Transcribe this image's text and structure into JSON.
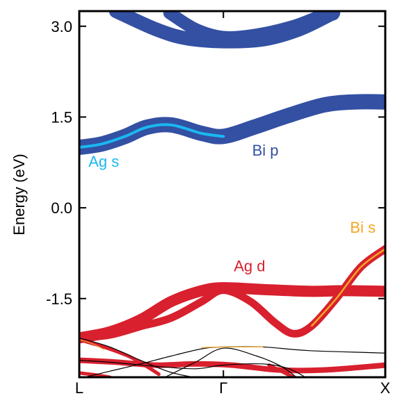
{
  "chart_data": {
    "type": "line",
    "title": "",
    "xlabel": "",
    "ylabel": "Energy (eV)",
    "ylim": [
      -2.8,
      3.25
    ],
    "xlim": [
      0,
      1
    ],
    "grid": false,
    "y_ticks": [
      {
        "value": 3.0,
        "label": "3.0"
      },
      {
        "value": 1.5,
        "label": "1.5"
      },
      {
        "value": 0.0,
        "label": "0.0"
      },
      {
        "value": -1.5,
        "label": "-1.5"
      }
    ],
    "x_ticks": [
      {
        "value": 0.0,
        "label": "L"
      },
      {
        "value": 0.471,
        "label": "Γ"
      },
      {
        "value": 1.0,
        "label": "X"
      }
    ],
    "colors": {
      "bi_p": "#3350a3",
      "ag_s": "#1ab8f0",
      "ag_d": "#d8202e",
      "bi_s": "#f5a623",
      "thin": "#000000"
    },
    "annotations": [
      {
        "text": "Ag s",
        "x": 0.03,
        "y": 0.68,
        "color": "#1ab8f0"
      },
      {
        "text": "Bi p",
        "x": 0.565,
        "y": 0.86,
        "color": "#3350a3"
      },
      {
        "text": "Bi s",
        "x": 0.885,
        "y": -0.41,
        "color": "#f5a623"
      },
      {
        "text": "Ag d",
        "x": 0.505,
        "y": -1.05,
        "color": "#d8202e"
      }
    ],
    "series": [
      {
        "character": "bi_p",
        "width": 20,
        "x": [
          0.12,
          0.25,
          0.35,
          0.471,
          0.6,
          0.72,
          0.83
        ],
        "y": [
          3.25,
          2.95,
          2.8,
          2.75,
          2.78,
          2.95,
          3.22
        ]
      },
      {
        "character": "bi_p",
        "width": 18,
        "x": [
          0.295,
          0.38,
          0.471,
          0.58,
          0.7,
          0.79,
          0.83
        ],
        "y": [
          3.22,
          2.95,
          2.82,
          2.86,
          3.0,
          3.17,
          3.2
        ]
      },
      {
        "character": "bi_p",
        "width": 22,
        "x": [
          0.0,
          0.07,
          0.15,
          0.22,
          0.3,
          0.4,
          0.471,
          0.57,
          0.68,
          0.8,
          0.9,
          1.0
        ],
        "y": [
          1.0,
          1.05,
          1.18,
          1.33,
          1.37,
          1.23,
          1.18,
          1.33,
          1.52,
          1.7,
          1.75,
          1.75
        ]
      },
      {
        "character": "ag_s",
        "width": 4,
        "x": [
          0.0,
          0.07,
          0.15,
          0.22,
          0.3,
          0.4,
          0.471
        ],
        "y": [
          1.0,
          1.05,
          1.18,
          1.33,
          1.37,
          1.23,
          1.18
        ]
      },
      {
        "character": "ag_d",
        "width": 16,
        "x": [
          0.0,
          0.1,
          0.2,
          0.3,
          0.4,
          0.471,
          0.6,
          0.75,
          0.87,
          1.0
        ],
        "y": [
          -2.15,
          -2.05,
          -1.85,
          -1.55,
          -1.37,
          -1.32,
          -1.35,
          -1.38,
          -1.37,
          -1.38
        ]
      },
      {
        "character": "ag_d",
        "width": 11,
        "x": [
          0.0,
          0.1,
          0.2,
          0.3,
          0.4,
          0.471,
          0.56,
          0.64,
          0.7,
          0.76,
          0.84,
          0.92,
          1.0
        ],
        "y": [
          -2.15,
          -2.1,
          -1.96,
          -1.82,
          -1.55,
          -1.36,
          -1.55,
          -1.9,
          -2.08,
          -1.95,
          -1.5,
          -0.98,
          -0.68
        ]
      },
      {
        "character": "bi_s",
        "width": 2.5,
        "x": [
          0.76,
          0.84,
          0.92,
          1.0
        ],
        "y": [
          -1.95,
          -1.5,
          -0.98,
          -0.68
        ]
      },
      {
        "character": "ag_d",
        "width": 8,
        "x": [
          0.0,
          0.12,
          0.25,
          0.38,
          0.5,
          0.65,
          0.8,
          1.0
        ],
        "y": [
          -2.52,
          -2.55,
          -2.6,
          -2.58,
          -2.6,
          -2.68,
          -2.68,
          -2.6
        ]
      },
      {
        "character": "ag_d",
        "width": 5,
        "x": [
          0.0,
          0.08,
          0.16,
          0.22,
          0.26
        ],
        "y": [
          -2.18,
          -2.3,
          -2.45,
          -2.62,
          -2.75
        ]
      },
      {
        "character": "ag_d",
        "width": 5,
        "x": [
          0.0,
          0.05,
          0.1
        ],
        "y": [
          -2.73,
          -2.76,
          -2.8
        ]
      },
      {
        "character": "ag_d",
        "width": 5,
        "x": [
          0.62,
          0.66,
          0.7
        ],
        "y": [
          -2.6,
          -2.7,
          -2.8
        ]
      },
      {
        "character": "thin",
        "width": 1.2,
        "x": [
          0.0,
          0.1,
          0.2,
          0.3,
          0.4,
          0.471,
          0.6,
          0.75,
          1.0
        ],
        "y": [
          -2.15,
          -2.3,
          -2.52,
          -2.72,
          -2.82,
          -2.85,
          -2.82,
          -2.8,
          -2.8
        ]
      },
      {
        "character": "thin",
        "width": 1.2,
        "x": [
          0.0,
          0.1,
          0.2,
          0.3,
          0.4,
          0.471,
          0.6,
          0.75,
          1.0
        ],
        "y": [
          -2.82,
          -2.7,
          -2.58,
          -2.45,
          -2.33,
          -2.3,
          -2.3,
          -2.36,
          -2.4
        ]
      },
      {
        "character": "thin",
        "width": 1.2,
        "x": [
          0.0,
          0.12,
          0.25,
          0.38,
          0.471,
          0.6,
          0.68,
          0.74
        ],
        "y": [
          -2.52,
          -2.56,
          -2.62,
          -2.66,
          -2.6,
          -2.58,
          -2.65,
          -2.8
        ]
      },
      {
        "character": "thin",
        "width": 1.2,
        "x": [
          0.28,
          0.38,
          0.471,
          0.58,
          0.66,
          0.71
        ],
        "y": [
          -2.8,
          -2.55,
          -2.32,
          -2.45,
          -2.62,
          -2.8
        ]
      },
      {
        "character": "bi_s",
        "width": 1.2,
        "x": [
          0.0,
          0.04,
          0.08
        ],
        "y": [
          -2.18,
          -2.24,
          -2.34
        ]
      },
      {
        "character": "bi_s",
        "width": 1.2,
        "x": [
          0.4,
          0.471,
          0.6
        ],
        "y": [
          -2.31,
          -2.3,
          -2.3
        ]
      }
    ]
  }
}
